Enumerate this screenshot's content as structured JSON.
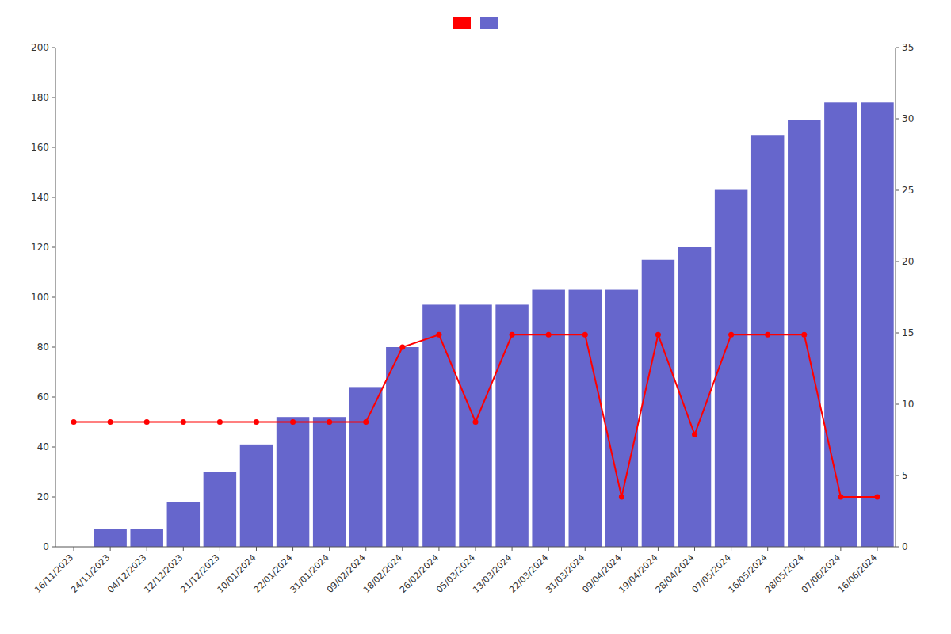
{
  "chart_data": {
    "type": "bar",
    "categories": [
      "16/11/2023",
      "24/11/2023",
      "04/12/2023",
      "12/12/2023",
      "21/12/2023",
      "10/01/2024",
      "22/01/2024",
      "31/01/2024",
      "09/02/2024",
      "18/02/2024",
      "26/02/2024",
      "05/03/2024",
      "13/03/2024",
      "22/03/2024",
      "31/03/2024",
      "09/04/2024",
      "19/04/2024",
      "28/04/2024",
      "07/05/2024",
      "16/05/2024",
      "28/05/2024",
      "07/06/2024",
      "16/06/2024"
    ],
    "series": [
      {
        "type": "line",
        "color": "#ff0000",
        "marker": "circle",
        "values": [
          50,
          50,
          50,
          50,
          50,
          50,
          50,
          50,
          50,
          80,
          85,
          50,
          85,
          85,
          85,
          20,
          85,
          45,
          85,
          85,
          85,
          20,
          20
        ]
      },
      {
        "type": "bar",
        "color": "#6666cc",
        "values": [
          0,
          7,
          7,
          18,
          30,
          41,
          52,
          52,
          64,
          80,
          97,
          97,
          97,
          103,
          103,
          103,
          115,
          120,
          143,
          165,
          171,
          178,
          178
        ]
      }
    ],
    "ylim": [
      0,
      200
    ],
    "yticks": [
      0,
      20,
      40,
      60,
      80,
      100,
      120,
      140,
      160,
      180,
      200
    ],
    "y2lim": [
      0,
      35
    ],
    "y2ticks": [
      0,
      5,
      10,
      15,
      20,
      25,
      30,
      35
    ],
    "grid": false,
    "legend": "top"
  }
}
